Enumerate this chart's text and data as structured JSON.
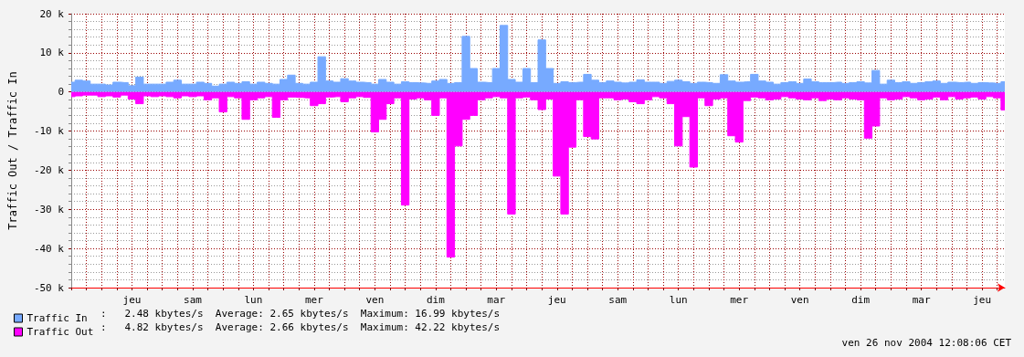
{
  "chart_data": {
    "type": "area",
    "ylabel": "Traffic Out / Traffic In",
    "categories": [
      null,
      null,
      null,
      null,
      null,
      null,
      null,
      null,
      "jeu",
      null,
      null,
      null,
      null,
      null,
      null,
      null,
      "sam",
      null,
      null,
      null,
      null,
      null,
      null,
      null,
      "lun",
      null,
      null,
      null,
      null,
      null,
      null,
      null,
      "mer",
      null,
      null,
      null,
      null,
      null,
      null,
      null,
      "ven",
      null,
      null,
      null,
      null,
      null,
      null,
      null,
      "dim",
      null,
      null,
      null,
      null,
      null,
      null,
      null,
      "mar",
      null,
      null,
      null,
      null,
      null,
      null,
      null,
      "jeu",
      null,
      null,
      null,
      null,
      null,
      null,
      null,
      "sam",
      null,
      null,
      null,
      null,
      null,
      null,
      null,
      "lun",
      null,
      null,
      null,
      null,
      null,
      null,
      null,
      "mer",
      null,
      null,
      null,
      null,
      null,
      null,
      null,
      "ven",
      null,
      null,
      null,
      null,
      null,
      null,
      null,
      "dim",
      null,
      null,
      null,
      null,
      null,
      null,
      null,
      "mar",
      null,
      null,
      null,
      null,
      null,
      null,
      null,
      "jeu",
      null,
      null,
      null
    ],
    "series": [
      {
        "name": "Traffic In",
        "color": "#77aaff",
        "values": [
          2.5,
          3,
          2.8,
          2,
          2,
          1.8,
          2.5,
          2.4,
          1.6,
          3.8,
          2,
          2,
          2,
          2.5,
          3,
          2,
          2,
          2.5,
          2.2,
          1.5,
          2,
          2.5,
          2.2,
          2.6,
          2,
          2.5,
          2.2,
          2,
          3.2,
          4.3,
          2.2,
          2,
          2.5,
          9,
          2.8,
          2.5,
          3.4,
          2.8,
          2.5,
          2.4,
          2,
          3.2,
          2.5,
          2,
          2.6,
          2.4,
          2.3,
          2.2,
          2.8,
          3.2,
          2.2,
          2.4,
          14.2,
          6,
          2.5,
          2.4,
          6,
          17,
          3.2,
          2.5,
          6,
          2.4,
          13.3,
          6,
          2.2,
          2.6,
          2.4,
          2.5,
          4.5,
          3,
          2.4,
          2.8,
          2.5,
          2.3,
          2.5,
          3.1,
          2.5,
          2.5,
          2.2,
          2.7,
          3,
          2.6,
          2.2,
          2.5,
          2.4,
          2.2,
          4.4,
          2.8,
          2.5,
          2.6,
          4.5,
          2.8,
          2.5,
          2,
          2.4,
          2.6,
          2.2,
          3.3,
          2.6,
          2.4,
          2.4,
          2.5,
          2.2,
          2.4,
          2.6,
          2.3,
          5.5,
          2,
          3,
          2.4,
          2.6,
          2.2,
          2.4,
          2.6,
          2.8,
          2.2,
          2.5,
          2.4,
          2.5,
          2.2,
          2.4,
          2.3,
          2.2,
          2.6
        ]
      },
      {
        "name": "Traffic Out",
        "color": "#ff00ff",
        "values": [
          -1.2,
          -1,
          -0.8,
          -0.8,
          -1.2,
          -1,
          -1.3,
          -0.8,
          -1.8,
          -3,
          -1,
          -1.2,
          -1,
          -1.2,
          -1.5,
          -1,
          -1.2,
          -1,
          -2,
          -1.5,
          -5.1,
          -1.2,
          -1.5,
          -7,
          -2,
          -1.5,
          -1.2,
          -6.5,
          -2,
          -1.3,
          -1.4,
          -1.5,
          -3.5,
          -3,
          -1.3,
          -1.2,
          -2.5,
          -1.5,
          -1.2,
          -1.4,
          -10.2,
          -7,
          -3,
          -1.5,
          -28.9,
          -1.8,
          -1.5,
          -2,
          -6,
          -1.5,
          -42.2,
          -13.8,
          -7,
          -6,
          -2,
          -1.5,
          -1.2,
          -1.5,
          -31.2,
          -1.5,
          -1.3,
          -2,
          -4.5,
          -1.8,
          -21.5,
          -31.2,
          -14.1,
          -2,
          -11.4,
          -12,
          -1.5,
          -1.5,
          -2,
          -1.8,
          -2.5,
          -3,
          -2,
          -1.2,
          -1.5,
          -3,
          -13.8,
          -6.3,
          -19.2,
          -1.5,
          -3.5,
          -1.8,
          -1.5,
          -11.2,
          -12.8,
          -2.2,
          -1.3,
          -1.5,
          -2,
          -1.8,
          -1.2,
          -1.5,
          -1.8,
          -2,
          -1.5,
          -2.2,
          -1.8,
          -2,
          -1.5,
          -1.8,
          -2,
          -11.8,
          -8.7,
          -1.5,
          -2,
          -1.8,
          -1.2,
          -1.5,
          -2,
          -1.8,
          -1.3,
          -2,
          -1.2,
          -1.8,
          -1.5,
          -1.3,
          -1.8,
          -1.2,
          -1.5,
          -4.6
        ]
      }
    ],
    "ylim": [
      -50,
      20
    ],
    "yticks": [
      {
        "value": -50,
        "label": "-50 k"
      },
      {
        "value": -40,
        "label": "-40 k"
      },
      {
        "value": -30,
        "label": "-30 k"
      },
      {
        "value": -20,
        "label": "-20 k"
      },
      {
        "value": -10,
        "label": "-10 k"
      },
      0,
      {
        "value": 10,
        "label": "10 k"
      },
      {
        "value": 20,
        "label": "20 k"
      }
    ],
    "grid": true,
    "legend": "bottom left",
    "annotations": [
      ":   2.48 kbytes/s  Average: 2.65 kbytes/s  Maximum: 16.99 kbytes/s",
      ":   4.82 kbytes/s  Average: 2.66 kbytes/s  Maximum: 42.22 kbytes/s",
      "ven 26 nov 2004 12:08:06 CET"
    ]
  }
}
